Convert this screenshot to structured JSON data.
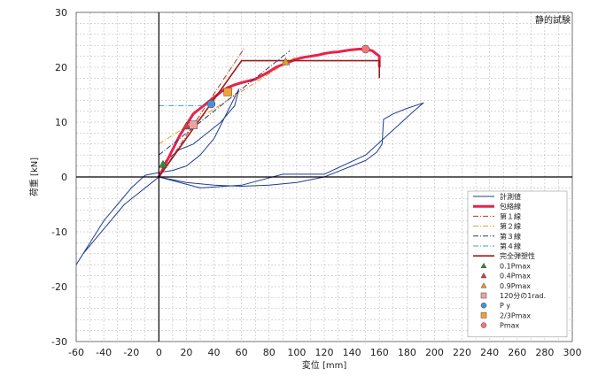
{
  "chart_data": {
    "type": "line",
    "title": "静的試験",
    "xlabel": "変位 [mm]",
    "ylabel": "荷重 [kN]",
    "xlim": [
      -60,
      300
    ],
    "ylim": [
      -30,
      30
    ],
    "xticks": [
      -60,
      -40,
      -20,
      0,
      20,
      40,
      60,
      80,
      100,
      120,
      140,
      160,
      180,
      200,
      220,
      240,
      260,
      280,
      300
    ],
    "yticks": [
      -30,
      -20,
      -10,
      0,
      10,
      20,
      30
    ],
    "grid": true,
    "legend_position": "bottom-right",
    "legend": [
      "計測値",
      "包絡線",
      "第１線",
      "第２線",
      "第３線",
      "第４線",
      "完全弾塑性",
      "0.1Pmax",
      "0.4Pmax",
      "0.9Pmax",
      "120分の1rad.",
      "P y",
      "2/3Pmax",
      "Pmax"
    ],
    "series": [
      {
        "name": "計測値",
        "type": "line",
        "color": "#1f3f8f",
        "x": [
          0,
          5,
          15,
          25,
          35,
          45,
          55,
          58,
          50,
          40,
          30,
          20,
          10,
          0,
          -10,
          -20,
          -30,
          -40,
          -50,
          -60,
          -55,
          -45,
          -35,
          -25,
          -15,
          -5,
          0
        ],
        "y": [
          0,
          3,
          5,
          6,
          8,
          10,
          13,
          16,
          12,
          7,
          4,
          2,
          1.2,
          0.8,
          0.3,
          -2,
          -5,
          -8,
          -12,
          -16,
          -14,
          -11,
          -8,
          -5,
          -3,
          -1,
          0
        ]
      },
      {
        "name": "計測値",
        "type": "line",
        "color": "#1f3f8f",
        "x": [
          0,
          20,
          40,
          60,
          80,
          100,
          120,
          140,
          150,
          158,
          162,
          163,
          170,
          180,
          192,
          185,
          150,
          120,
          90,
          60,
          30,
          0
        ],
        "y": [
          0,
          -1,
          -1.5,
          -1.7,
          -1.5,
          -1,
          0,
          2,
          3,
          4.5,
          6,
          10.5,
          11.5,
          12.5,
          13.5,
          12,
          4,
          0.5,
          0.5,
          -1.5,
          -2,
          0
        ]
      },
      {
        "name": "包絡線",
        "type": "line",
        "color": "#e8224b",
        "x": [
          0,
          5,
          10,
          15,
          20,
          25,
          30,
          35,
          40,
          45,
          50,
          55,
          60,
          65,
          70,
          75,
          80,
          85,
          90,
          95,
          100,
          105,
          110,
          115,
          120,
          125,
          130,
          135,
          140,
          145,
          150,
          155,
          160,
          160
        ],
        "y": [
          0,
          2.5,
          5,
          7.5,
          9.5,
          11.5,
          12.5,
          13.5,
          14.5,
          15.5,
          16.3,
          16.8,
          17.2,
          17.5,
          17.8,
          18.5,
          19.2,
          20,
          20.5,
          21,
          21.5,
          21.8,
          22,
          22.2,
          22.5,
          22.7,
          22.8,
          23,
          23.2,
          23.3,
          23.3,
          23,
          22,
          20
        ]
      },
      {
        "name": "第１線",
        "type": "dashdot",
        "color": "#b23b2b",
        "x": [
          0,
          62
        ],
        "y": [
          0,
          23.5
        ]
      },
      {
        "name": "第２線",
        "type": "dashdot",
        "color": "#e89a2a",
        "x": [
          0,
          100
        ],
        "y": [
          6,
          22
        ]
      },
      {
        "name": "第３線",
        "type": "dashdot",
        "color": "#2b3b6b",
        "x": [
          0,
          95
        ],
        "y": [
          4,
          23
        ]
      },
      {
        "name": "第４線",
        "type": "dashdot",
        "color": "#3aa0c8",
        "x": [
          0,
          40
        ],
        "y": [
          13,
          13
        ]
      },
      {
        "name": "完全弾塑性",
        "type": "line",
        "color": "#9b1c1c",
        "x": [
          0,
          60,
          160,
          160
        ],
        "y": [
          0,
          21.2,
          21.2,
          18
        ]
      }
    ],
    "markers": [
      {
        "name": "0.1Pmax",
        "shape": "triangle",
        "color": "#2f8f2f",
        "x": 3,
        "y": 2.3
      },
      {
        "name": "0.4Pmax",
        "shape": "triangle",
        "color": "#d63a3a",
        "x": 20,
        "y": 9.3
      },
      {
        "name": "0.9Pmax",
        "shape": "triangle",
        "color": "#e89a2a",
        "x": 92,
        "y": 21
      },
      {
        "name": "120分の1rad.",
        "shape": "square",
        "color": "#f0a0a0",
        "x": 25,
        "y": 9.5
      },
      {
        "name": "P y",
        "shape": "circle",
        "color": "#4a8fd8",
        "x": 38,
        "y": 13.3
      },
      {
        "name": "2/3Pmax",
        "shape": "square",
        "color": "#f5a030",
        "x": 50,
        "y": 15.5
      },
      {
        "name": "Pmax",
        "shape": "circle",
        "color": "#f07878",
        "x": 150,
        "y": 23.3
      }
    ]
  }
}
